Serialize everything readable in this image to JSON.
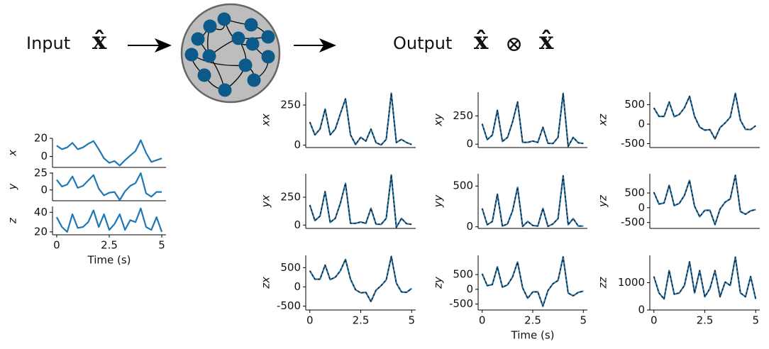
{
  "diagram": {
    "input_label": "Input",
    "input_symbol": "x̂",
    "output_label": "Output",
    "output_symbol_left": "x̂",
    "operator": "⊗",
    "output_symbol_right": "x̂"
  },
  "chart_data": [
    {
      "type": "line",
      "ylabel": "x",
      "x": [
        0,
        0.25,
        0.5,
        0.75,
        1,
        1.25,
        1.5,
        1.75,
        2,
        2.25,
        2.5,
        2.75,
        3,
        3.25,
        3.5,
        3.75,
        4,
        4.25,
        4.5,
        4.75,
        5
      ],
      "series": [
        {
          "color": "#1f77b4",
          "values": [
            12,
            8,
            10,
            15,
            8,
            10,
            14,
            17,
            8,
            -2,
            -7,
            -5,
            -10,
            -4,
            1,
            6,
            18,
            4,
            -6,
            -4,
            -2
          ]
        }
      ],
      "xlim": [
        -0.2,
        5.2
      ],
      "ylim": [
        -12,
        20
      ],
      "yticks": [
        0,
        20
      ]
    },
    {
      "type": "line",
      "ylabel": "y",
      "x": [
        0,
        0.25,
        0.5,
        0.75,
        1,
        1.25,
        1.5,
        1.75,
        2,
        2.25,
        2.5,
        2.75,
        3,
        3.25,
        3.5,
        3.75,
        4,
        4.25,
        4.5,
        4.75,
        5
      ],
      "series": [
        {
          "color": "#1f77b4",
          "values": [
            15,
            5,
            8,
            20,
            3,
            6,
            14,
            22,
            2,
            -8,
            -4,
            -3,
            -15,
            -2,
            6,
            10,
            25,
            -5,
            -10,
            -3,
            -3
          ]
        }
      ],
      "xlim": [
        -0.2,
        5.2
      ],
      "ylim": [
        -16,
        26
      ],
      "yticks": [
        0,
        25
      ]
    },
    {
      "type": "line",
      "ylabel": "z",
      "xlabel": "Time (s)",
      "x": [
        0,
        0.25,
        0.5,
        0.75,
        1,
        1.25,
        1.5,
        1.75,
        2,
        2.25,
        2.5,
        2.75,
        3,
        3.25,
        3.5,
        3.75,
        4,
        4.25,
        4.5,
        4.75,
        5
      ],
      "series": [
        {
          "color": "#1f77b4",
          "values": [
            35,
            25,
            20,
            38,
            24,
            25,
            30,
            42,
            25,
            38,
            22,
            28,
            38,
            22,
            32,
            30,
            44,
            25,
            22,
            35,
            20
          ]
        }
      ],
      "xlim": [
        -0.2,
        5.2
      ],
      "xticks": [
        0,
        2.5,
        5
      ],
      "ylim": [
        17,
        46
      ],
      "yticks": [
        20,
        40
      ]
    },
    {
      "type": "line",
      "ylabel": "xx",
      "x": [
        0,
        0.25,
        0.5,
        0.75,
        1,
        1.25,
        1.5,
        1.75,
        2,
        2.25,
        2.5,
        2.75,
        3,
        3.25,
        3.5,
        3.75,
        4,
        4.25,
        4.5,
        4.75,
        5
      ],
      "series": [
        {
          "color": "#1f77b4",
          "values": [
            144,
            64,
            100,
            225,
            64,
            100,
            196,
            289,
            64,
            4,
            49,
            25,
            100,
            16,
            1,
            36,
            324,
            16,
            36,
            16,
            4
          ]
        }
      ],
      "overlay": {
        "color": "#222222",
        "dashed": true
      },
      "xlim": [
        -0.2,
        5.2
      ],
      "ylim": [
        -15,
        330
      ],
      "yticks": [
        0,
        250
      ]
    },
    {
      "type": "line",
      "ylabel": "xy",
      "x": [
        0,
        0.25,
        0.5,
        0.75,
        1,
        1.25,
        1.5,
        1.75,
        2,
        2.25,
        2.5,
        2.75,
        3,
        3.25,
        3.5,
        3.75,
        4,
        4.25,
        4.5,
        4.75,
        5
      ],
      "series": [
        {
          "color": "#1f77b4",
          "values": [
            180,
            40,
            80,
            300,
            24,
            60,
            196,
            374,
            16,
            16,
            28,
            15,
            150,
            8,
            6,
            60,
            450,
            -20,
            60,
            12,
            6
          ]
        }
      ],
      "overlay": {
        "color": "#222222",
        "dashed": true
      },
      "xlim": [
        -0.2,
        5.2
      ],
      "ylim": [
        -30,
        460
      ],
      "yticks": [
        0,
        250
      ]
    },
    {
      "type": "line",
      "ylabel": "xz",
      "x": [
        0,
        0.25,
        0.5,
        0.75,
        1,
        1.25,
        1.5,
        1.75,
        2,
        2.25,
        2.5,
        2.75,
        3,
        3.25,
        3.5,
        3.75,
        4,
        4.25,
        4.5,
        4.75,
        5
      ],
      "series": [
        {
          "color": "#1f77b4",
          "values": [
            420,
            200,
            200,
            570,
            192,
            250,
            420,
            714,
            200,
            -76,
            -154,
            -140,
            -380,
            -88,
            32,
            180,
            792,
            100,
            -132,
            -140,
            -40
          ]
        }
      ],
      "overlay": {
        "color": "#222222",
        "dashed": true
      },
      "xlim": [
        -0.2,
        5.2
      ],
      "ylim": [
        -600,
        820
      ],
      "yticks": [
        -500,
        0,
        500
      ]
    },
    {
      "type": "line",
      "ylabel": "yx",
      "x": [
        0,
        0.25,
        0.5,
        0.75,
        1,
        1.25,
        1.5,
        1.75,
        2,
        2.25,
        2.5,
        2.75,
        3,
        3.25,
        3.5,
        3.75,
        4,
        4.25,
        4.5,
        4.75,
        5
      ],
      "series": [
        {
          "color": "#1f77b4",
          "values": [
            180,
            40,
            80,
            300,
            24,
            60,
            196,
            374,
            16,
            16,
            28,
            15,
            150,
            8,
            6,
            60,
            450,
            -20,
            60,
            12,
            6
          ]
        }
      ],
      "overlay": {
        "color": "#222222",
        "dashed": true
      },
      "xlim": [
        -0.2,
        5.2
      ],
      "ylim": [
        -30,
        460
      ],
      "yticks": [
        0,
        250
      ]
    },
    {
      "type": "line",
      "ylabel": "yy",
      "x": [
        0,
        0.25,
        0.5,
        0.75,
        1,
        1.25,
        1.5,
        1.75,
        2,
        2.25,
        2.5,
        2.75,
        3,
        3.25,
        3.5,
        3.75,
        4,
        4.25,
        4.5,
        4.75,
        5
      ],
      "series": [
        {
          "color": "#1f77b4",
          "values": [
            225,
            25,
            64,
            400,
            9,
            36,
            196,
            484,
            4,
            64,
            16,
            9,
            225,
            4,
            36,
            100,
            625,
            25,
            100,
            9,
            9
          ]
        }
      ],
      "overlay": {
        "color": "#222222",
        "dashed": true
      },
      "xlim": [
        -0.2,
        5.2
      ],
      "ylim": [
        -20,
        650
      ],
      "yticks": [
        0,
        500
      ]
    },
    {
      "type": "line",
      "ylabel": "yz",
      "x": [
        0,
        0.25,
        0.5,
        0.75,
        1,
        1.25,
        1.5,
        1.75,
        2,
        2.25,
        2.5,
        2.75,
        3,
        3.25,
        3.5,
        3.75,
        4,
        4.25,
        4.5,
        4.75,
        5
      ],
      "series": [
        {
          "color": "#1f77b4",
          "values": [
            525,
            125,
            160,
            760,
            72,
            150,
            420,
            924,
            50,
            -304,
            -88,
            -84,
            -570,
            -44,
            192,
            300,
            1100,
            -125,
            -220,
            -105,
            -60
          ]
        }
      ],
      "overlay": {
        "color": "#222222",
        "dashed": true
      },
      "xlim": [
        -0.2,
        5.2
      ],
      "ylim": [
        -700,
        1150
      ],
      "yticks": [
        -500,
        0,
        500
      ]
    },
    {
      "type": "line",
      "ylabel": "zx",
      "x": [
        0,
        0.25,
        0.5,
        0.75,
        1,
        1.25,
        1.5,
        1.75,
        2,
        2.25,
        2.5,
        2.75,
        3,
        3.25,
        3.5,
        3.75,
        4,
        4.25,
        4.5,
        4.75,
        5
      ],
      "series": [
        {
          "color": "#1f77b4",
          "values": [
            420,
            200,
            200,
            570,
            192,
            250,
            420,
            714,
            200,
            -76,
            -154,
            -140,
            -380,
            -88,
            32,
            180,
            792,
            100,
            -132,
            -140,
            -40
          ]
        }
      ],
      "overlay": {
        "color": "#222222",
        "dashed": true
      },
      "xlim": [
        -0.2,
        5.2
      ],
      "xticks": [
        0,
        2.5,
        5
      ],
      "ylim": [
        -600,
        820
      ],
      "yticks": [
        -500,
        0,
        500
      ]
    },
    {
      "type": "line",
      "ylabel": "zy",
      "xlabel": "Time (s)",
      "x": [
        0,
        0.25,
        0.5,
        0.75,
        1,
        1.25,
        1.5,
        1.75,
        2,
        2.25,
        2.5,
        2.75,
        3,
        3.25,
        3.5,
        3.75,
        4,
        4.25,
        4.5,
        4.75,
        5
      ],
      "series": [
        {
          "color": "#1f77b4",
          "values": [
            525,
            125,
            160,
            760,
            72,
            150,
            420,
            924,
            50,
            -304,
            -88,
            -84,
            -570,
            -44,
            192,
            300,
            1100,
            -125,
            -220,
            -105,
            -60
          ]
        }
      ],
      "overlay": {
        "color": "#222222",
        "dashed": true
      },
      "xlim": [
        -0.2,
        5.2
      ],
      "xticks": [
        0,
        2.5,
        5
      ],
      "ylim": [
        -700,
        1150
      ],
      "yticks": [
        -500,
        0,
        500
      ]
    },
    {
      "type": "line",
      "ylabel": "zz",
      "x": [
        0,
        0.25,
        0.5,
        0.75,
        1,
        1.25,
        1.5,
        1.75,
        2,
        2.25,
        2.5,
        2.75,
        3,
        3.25,
        3.5,
        3.75,
        4,
        4.25,
        4.5,
        4.75,
        5
      ],
      "series": [
        {
          "color": "#1f77b4",
          "values": [
            1225,
            625,
            400,
            1444,
            576,
            625,
            900,
            1764,
            625,
            1444,
            484,
            784,
            1444,
            484,
            1024,
            900,
            1936,
            625,
            484,
            1225,
            400
          ]
        }
      ],
      "overlay": {
        "color": "#222222",
        "dashed": true
      },
      "xlim": [
        -0.2,
        5.2
      ],
      "xticks": [
        0,
        2.5,
        5
      ],
      "ylim": [
        0,
        2000
      ],
      "yticks": [
        0,
        1000
      ]
    }
  ]
}
